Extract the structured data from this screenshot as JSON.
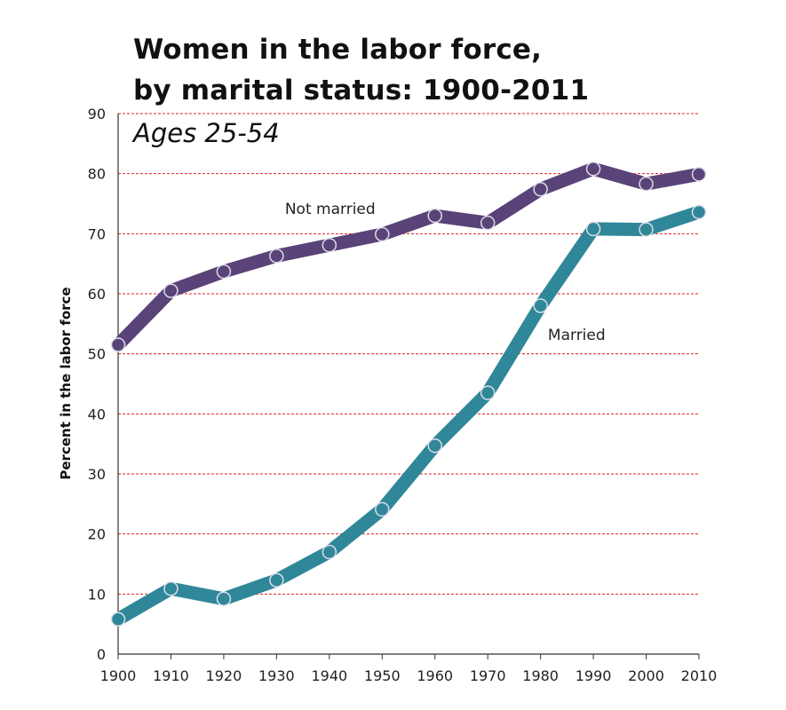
{
  "chart_data": {
    "type": "line",
    "title_lines": [
      "Women in the labor force,",
      "by marital status: 1900-2011"
    ],
    "subtitle": "Ages 25-54",
    "xlabel": "",
    "ylabel": "Percent in the labor force",
    "x": [
      1900,
      1910,
      1920,
      1930,
      1940,
      1950,
      1960,
      1970,
      1980,
      1990,
      2000,
      2010
    ],
    "xlim": [
      1900,
      2010
    ],
    "ylim": [
      0,
      90
    ],
    "yticks": [
      0,
      10,
      20,
      30,
      40,
      50,
      60,
      70,
      80,
      90
    ],
    "grid": true,
    "series": [
      {
        "name": "Not married",
        "color": "#5a4378",
        "values": [
          51.5,
          60.5,
          63.7,
          66.3,
          68.1,
          69.9,
          73.0,
          71.8,
          77.4,
          80.8,
          78.3,
          79.9
        ]
      },
      {
        "name": "Married",
        "color": "#2f8799",
        "values": [
          5.8,
          10.9,
          9.2,
          12.3,
          17.0,
          24.1,
          34.7,
          43.5,
          58.0,
          70.8,
          70.7,
          73.6
        ]
      }
    ],
    "grid_color": "#dd2222"
  }
}
